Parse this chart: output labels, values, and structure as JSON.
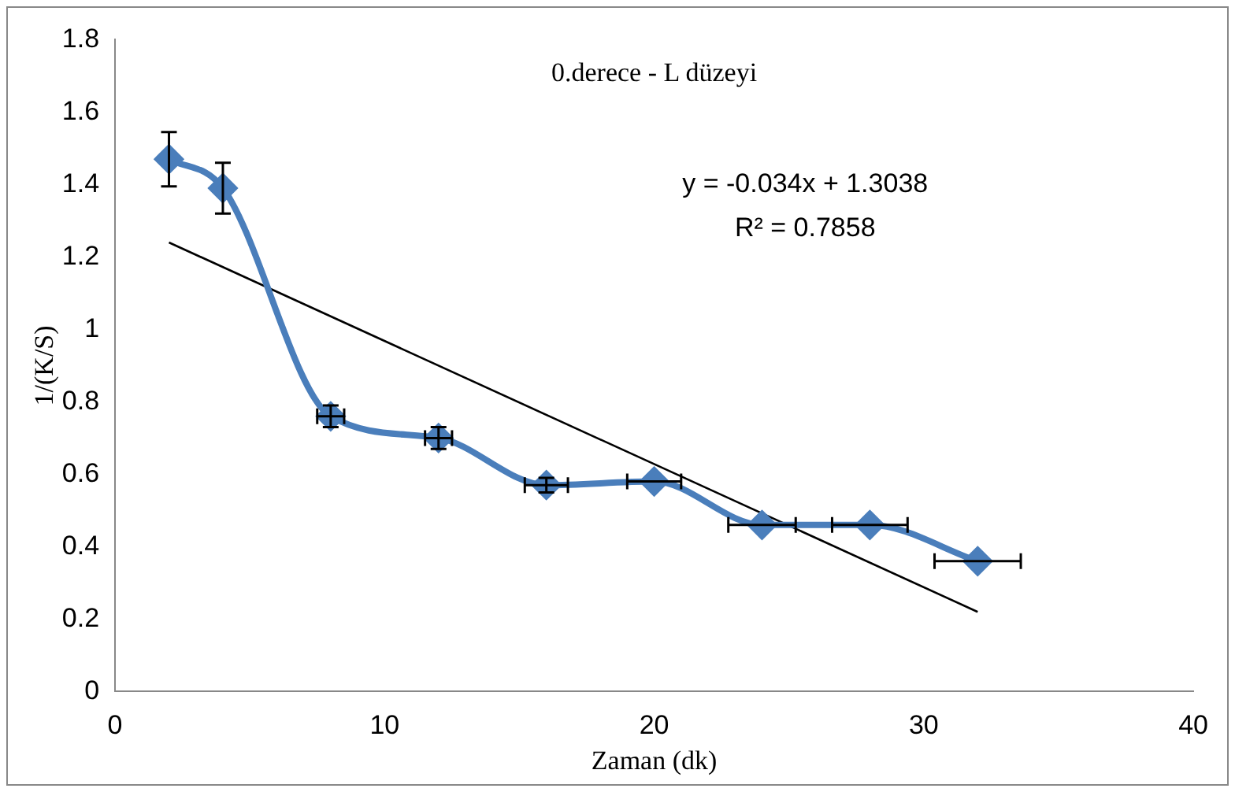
{
  "chart_data": {
    "type": "line",
    "title": "0.derece - L düzeyi",
    "xlabel": "Zaman (dk)",
    "ylabel": "1/(K/S)",
    "x": [
      2,
      4,
      8,
      12,
      16,
      20,
      24,
      28,
      32
    ],
    "series": [
      {
        "color": "#4a7ebb",
        "values": [
          1.47,
          1.39,
          0.76,
          0.7,
          0.57,
          0.58,
          0.46,
          0.46,
          0.36
        ],
        "errors": [
          0.075,
          0.07,
          0.03,
          0.03,
          0.02,
          null,
          null,
          null,
          null
        ],
        "xerrors": [
          null,
          null,
          0.5,
          0.5,
          0.8,
          1,
          1.25,
          1.4,
          1.6
        ]
      },
      {
        "type": "line",
        "color": "#000000",
        "x": [
          2,
          32
        ],
        "values": [
          1.24,
          0.22
        ],
        "marker": "none"
      }
    ],
    "annotations": [
      "y = -0.034x + 1.3038",
      "R² = 0.7858"
    ],
    "xlim": [
      0,
      40
    ],
    "xticks": [
      0,
      10,
      20,
      30,
      40
    ],
    "ylim": [
      0,
      1.8
    ],
    "yticks": [
      0,
      0.2,
      0.4,
      0.6,
      0.8,
      1,
      1.2,
      1.4,
      1.6,
      1.8
    ],
    "grid": false,
    "legend": false,
    "marker": "diamond",
    "line_style": "solid"
  }
}
